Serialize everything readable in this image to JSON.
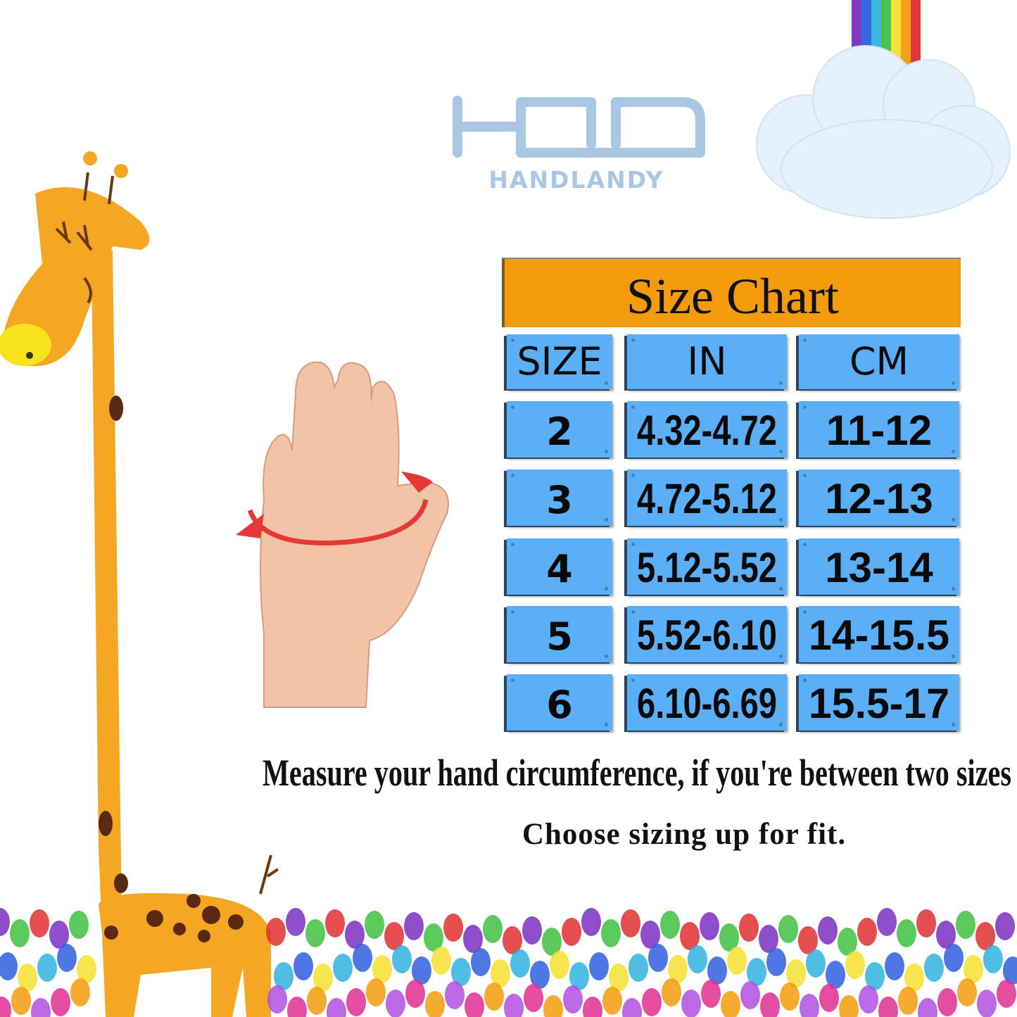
{
  "brand": {
    "logo_text": "HANDLANDY",
    "logo_color": "#a9c6e3"
  },
  "size_chart": {
    "title": "Size Chart",
    "headers": [
      "SIZE",
      "IN",
      "CM"
    ],
    "rows": [
      [
        "2",
        "4.32-4.72",
        "11-12"
      ],
      [
        "3",
        "4.72-5.12",
        "12-13"
      ],
      [
        "4",
        "5.12-5.52",
        "13-14"
      ],
      [
        "5",
        "5.52-6.10",
        "14-15.5"
      ],
      [
        "6",
        "6.10-6.69",
        "15.5-17"
      ]
    ],
    "title_color": "#f49b0c",
    "cell_color": "#5aaff7"
  },
  "notes": {
    "line1": "Measure your hand circumference, if you're between two sizes",
    "line2": "Choose sizing up for fit."
  },
  "decorations": [
    "giraffe-illustration",
    "rainbow-cloud-illustration",
    "hand-measure-photo",
    "colorful-handprints-border"
  ]
}
